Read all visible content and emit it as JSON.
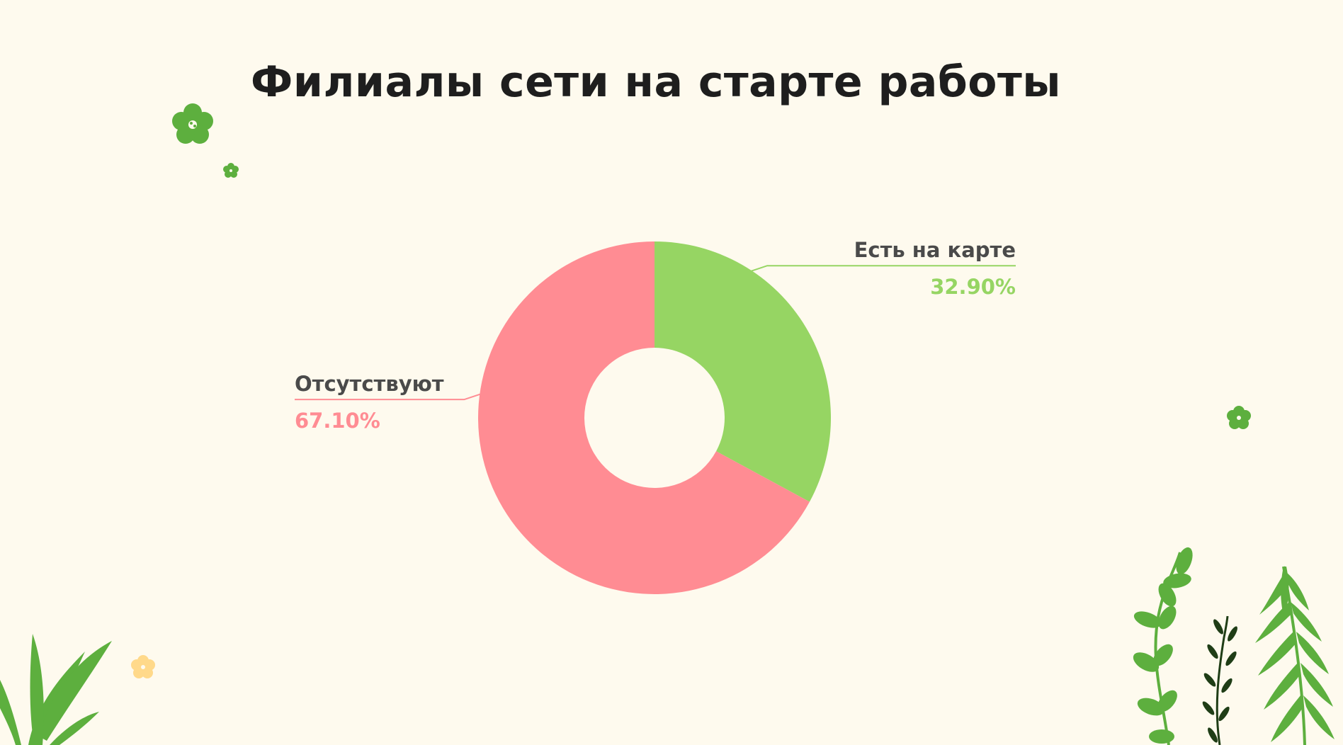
{
  "slide": {
    "title": "Филиалы сети на старте работы",
    "background_color": "#FEFAEE",
    "decorations": {
      "flower_color": "#5DAF3E",
      "flower_small_accent": "#FFD98A",
      "leaf_color": "#5DAF3E",
      "dark_leaf_color": "#1F3D16"
    }
  },
  "chart_data": {
    "type": "pie",
    "variant": "donut",
    "title": "Филиалы сети на старте работы",
    "legend": "none",
    "slices": [
      {
        "name": "Есть на карте",
        "value": 32.9,
        "value_label": "32.90%",
        "color": "#96D563"
      },
      {
        "name": "Отсутствуют",
        "value": 67.1,
        "value_label": "67.10%",
        "color": "#FF8C93"
      }
    ]
  }
}
